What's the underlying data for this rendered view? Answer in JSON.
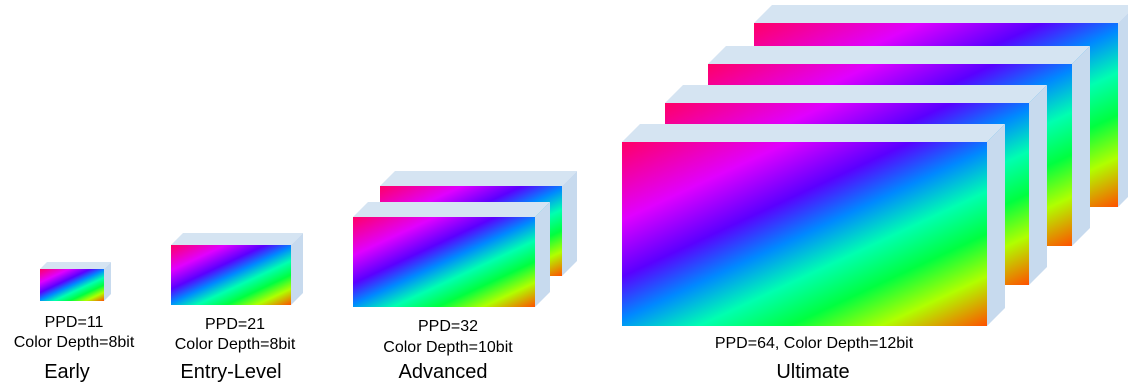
{
  "tiers": [
    {
      "name": "Early",
      "spec_lines": [
        "PPD=11",
        "Color Depth=8bit"
      ],
      "panel_count": 1
    },
    {
      "name": "Entry-Level",
      "spec_lines": [
        "PPD=21",
        "Color Depth=8bit"
      ],
      "panel_count": 1
    },
    {
      "name": "Advanced",
      "spec_lines": [
        "PPD=32",
        "Color Depth=10bit"
      ],
      "panel_count": 2
    },
    {
      "name": "Ultimate",
      "spec_lines": [
        "PPD=64, Color Depth=12bit"
      ],
      "panel_count": 4
    }
  ],
  "colors": {
    "panel_top": "#d5e4f2",
    "panel_side": "#c7daee",
    "gradient": [
      "#ff0066",
      "#e000ff",
      "#5a00ff",
      "#0088ff",
      "#00ffb0",
      "#00ff40",
      "#b0ff00",
      "#ff5000"
    ]
  }
}
